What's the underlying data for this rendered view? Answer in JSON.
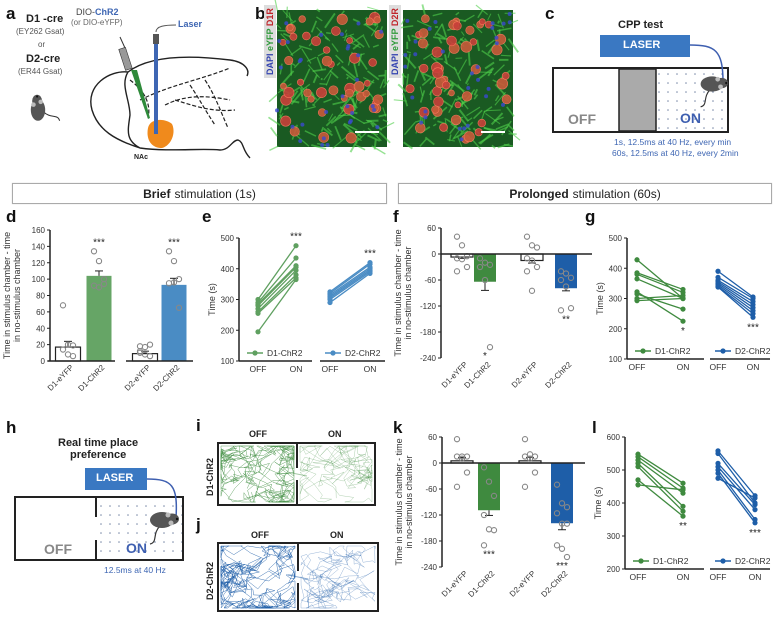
{
  "panel_labels": {
    "a": "a",
    "b": "b",
    "c": "c",
    "d": "d",
    "e": "e",
    "f": "f",
    "g": "g",
    "h": "h",
    "i": "i",
    "j": "j",
    "k": "k",
    "l": "l"
  },
  "a": {
    "d1": "D1 -cre",
    "d1_sub": "(EY262 Gsat)",
    "or": "or",
    "d2": "D2-cre",
    "d2_sub": "(ER44 Gsat)",
    "virus_prefix": "DIO-",
    "virus": "ChR2",
    "virus_alt": "(or DIO-eYFP)",
    "laser": "Laser",
    "nac": "NAc"
  },
  "b": {
    "left_label": {
      "dapi": "DAPI",
      "eyfp": "eYFP",
      "receptor": "D1R"
    },
    "right_label": {
      "dapi": "DAPI",
      "eyfp": "eYFP",
      "receptor": "D2R"
    }
  },
  "c": {
    "title": "CPP test",
    "laser": "LASER",
    "off": "OFF",
    "on": "ON",
    "protocol1": "1s, 12.5ms at 40 Hz, every min",
    "protocol2": "60s, 12.5ms at 40 Hz, every 2min"
  },
  "sections": {
    "brief_bold": "Brief",
    "brief_rest": "stimulation (1s)",
    "prolonged_bold": "Prolonged",
    "prolonged_rest": "stimulation (60s)"
  },
  "h": {
    "title1": "Real time place",
    "title2": "preference",
    "laser": "LASER",
    "off": "OFF",
    "on": "ON",
    "protocol": "12.5ms at 40 Hz"
  },
  "i": {
    "row": "D1-ChR2",
    "off": "OFF",
    "on": "ON"
  },
  "j": {
    "row": "D2-ChR2",
    "off": "OFF",
    "on": "ON"
  },
  "colors": {
    "d1": "#4f9650",
    "d2_light": "#4a8cc4",
    "d2_dark": "#1e5ea8",
    "laser": "#3a78c2",
    "nac": "#f08a1c",
    "mouse": "#555555"
  },
  "chart_data": [
    {
      "panel": "d",
      "type": "bar",
      "ylabel": [
        "Time in stimulus chamber - time",
        "in no-stimulus chamber"
      ],
      "ylim": [
        0,
        160
      ],
      "yticks": [
        0,
        20,
        40,
        60,
        80,
        100,
        120,
        140,
        160
      ],
      "categories": [
        "D1-eYFP",
        "D1-ChR2",
        "D2-eYFP",
        "D2-ChR2"
      ],
      "values": [
        17,
        104,
        9,
        93
      ],
      "errors": [
        7,
        6,
        3,
        8
      ],
      "points": [
        [
          68,
          20,
          19,
          14,
          8,
          6
        ],
        [
          134,
          122,
          100,
          92,
          90,
          94
        ],
        [
          18,
          17,
          20,
          12,
          8,
          6,
          10
        ],
        [
          134,
          122,
          100,
          95,
          96,
          65
        ]
      ],
      "significance": [
        "",
        "***",
        "",
        "***"
      ],
      "colors": [
        "#ffffff",
        "#66a566",
        "#ffffff",
        "#4a8cc4"
      ]
    },
    {
      "panel": "e",
      "type": "line",
      "ylabel": "Time (s)",
      "ylim": [
        100,
        500
      ],
      "yticks": [
        100,
        200,
        300,
        400,
        500
      ],
      "x": [
        "OFF",
        "ON"
      ],
      "series": [
        {
          "name": "D1-ChR2",
          "color": "#5fa060",
          "off": [
            300,
            290,
            280,
            270,
            260,
            255,
            195,
            285
          ],
          "on": [
            475,
            435,
            405,
            395,
            380,
            370,
            365,
            410
          ],
          "significance": "***"
        },
        {
          "name": "D2-ChR2",
          "color": "#4a8cc4",
          "off": [
            325,
            320,
            315,
            310,
            300,
            290,
            305
          ],
          "on": [
            420,
            415,
            405,
            400,
            390,
            385,
            395
          ],
          "significance": "***"
        }
      ]
    },
    {
      "panel": "f",
      "type": "bar",
      "ylabel": [
        "Time in stimulus chamber - time",
        "in no-stimulus chamber"
      ],
      "ylim": [
        -240,
        60
      ],
      "yticks": [
        -240,
        -180,
        -120,
        -60,
        0,
        60
      ],
      "categories": [
        "D1-eYFP",
        "D1-ChR2",
        "D2-eYFP",
        "D2-ChR2"
      ],
      "values": [
        -7,
        -64,
        -15,
        -79
      ],
      "errors": [
        3,
        20,
        6,
        6
      ],
      "points": [
        [
          40,
          20,
          -5,
          -10,
          -12,
          -30,
          -40
        ],
        [
          -10,
          -20,
          -25,
          -30,
          -60,
          -215
        ],
        [
          40,
          20,
          15,
          -10,
          -15,
          -30,
          -40,
          -85
        ],
        [
          -40,
          -45,
          -55,
          -60,
          -75,
          -125,
          -130
        ]
      ],
      "significance": [
        "",
        "*",
        "",
        "**"
      ],
      "colors": [
        "#ffffff",
        "#3f8a3f",
        "#ffffff",
        "#1e5ea8"
      ]
    },
    {
      "panel": "g",
      "type": "line",
      "ylabel": "Time (s)",
      "ylim": [
        100,
        500
      ],
      "yticks": [
        100,
        200,
        300,
        400,
        500
      ],
      "x": [
        "OFF",
        "ON"
      ],
      "series": [
        {
          "name": "D1-ChR2",
          "color": "#3f8a3f",
          "off": [
            428,
            385,
            380,
            365,
            322,
            315,
            300,
            293
          ],
          "on": [
            300,
            330,
            320,
            300,
            225,
            265,
            310,
            300
          ],
          "significance": "*"
        },
        {
          "name": "D2-ChR2",
          "color": "#1e5ea8",
          "off": [
            390,
            370,
            360,
            355,
            350,
            345,
            340,
            338
          ],
          "on": [
            305,
            300,
            290,
            280,
            270,
            260,
            250,
            238
          ],
          "significance": "***"
        }
      ]
    },
    {
      "panel": "k",
      "type": "bar",
      "ylabel": [
        "Time in stimulus chamber - time",
        "in no-stimulus chamber"
      ],
      "ylim": [
        -240,
        60
      ],
      "yticks": [
        -240,
        -180,
        -120,
        -60,
        0,
        60
      ],
      "categories": [
        "D1-eYFP",
        "D1-ChR2",
        "D2-eYFP",
        "D2-ChR2"
      ],
      "values": [
        5,
        -109,
        5,
        -139
      ],
      "errors": [
        8,
        12,
        8,
        15
      ],
      "points": [
        [
          55,
          15,
          15,
          15,
          10,
          -22,
          -55
        ],
        [
          -10,
          -43,
          -76,
          -120,
          -153,
          -155,
          -190
        ],
        [
          55,
          20,
          15,
          15,
          10,
          -22,
          -55
        ],
        [
          -50,
          -93,
          -102,
          -116,
          -140,
          -140,
          -190,
          -198,
          -217
        ]
      ],
      "significance": [
        "",
        "***",
        "",
        "***"
      ],
      "colors": [
        "#ffffff",
        "#3f8a3f",
        "#ffffff",
        "#1e5ea8"
      ]
    },
    {
      "panel": "l",
      "type": "line",
      "ylabel": "Time (s)",
      "ylim": [
        200,
        600
      ],
      "yticks": [
        200,
        300,
        400,
        500,
        600
      ],
      "x": [
        "OFF",
        "ON"
      ],
      "series": [
        {
          "name": "D1-ChR2",
          "color": "#3f8a3f",
          "off": [
            548,
            540,
            530,
            520,
            510,
            470,
            455
          ],
          "on": [
            460,
            445,
            430,
            390,
            375,
            360,
            440
          ],
          "significance": "**"
        },
        {
          "name": "D2-ChR2",
          "color": "#1e5ea8",
          "off": [
            558,
            550,
            520,
            510,
            500,
            490,
            475
          ],
          "on": [
            422,
            400,
            395,
            380,
            350,
            340,
            415
          ],
          "significance": "***"
        }
      ]
    }
  ]
}
